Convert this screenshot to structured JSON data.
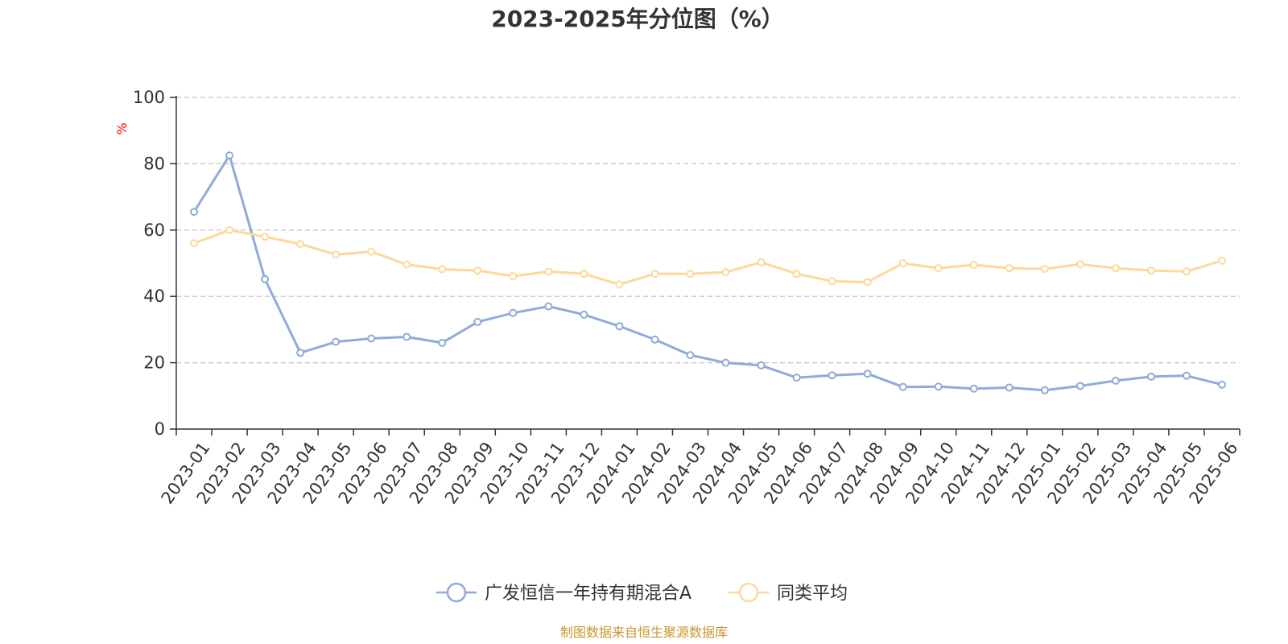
{
  "chart_data": {
    "type": "line",
    "title": "2023-2025年分位图（%）",
    "y_unit": "%",
    "ylim": [
      0,
      100
    ],
    "yticks": [
      0,
      20,
      40,
      60,
      80,
      100
    ],
    "grid": "horizontal-dashed",
    "legend_position": "bottom-center",
    "categories": [
      "2023-01",
      "2023-02",
      "2023-03",
      "2023-04",
      "2023-05",
      "2023-06",
      "2023-07",
      "2023-08",
      "2023-09",
      "2023-10",
      "2023-11",
      "2023-12",
      "2024-01",
      "2024-02",
      "2024-03",
      "2024-04",
      "2024-05",
      "2024-06",
      "2024-07",
      "2024-08",
      "2024-09",
      "2024-10",
      "2024-11",
      "2024-12",
      "2025-01",
      "2025-02",
      "2025-03",
      "2025-04",
      "2025-05",
      "2025-06"
    ],
    "series": [
      {
        "name": "广发恒信一年持有期混合A",
        "color": "#8eabd9",
        "values": [
          65.5,
          82.5,
          45.2,
          23.0,
          26.3,
          27.3,
          27.8,
          26.0,
          32.3,
          35.0,
          37.0,
          34.5,
          31.0,
          27.0,
          22.3,
          20.0,
          19.2,
          15.5,
          16.2,
          16.7,
          12.7,
          12.8,
          12.2,
          12.5,
          11.7,
          13.0,
          14.6,
          15.8,
          16.1,
          13.4
        ]
      },
      {
        "name": "同类平均",
        "color": "#fdd89a",
        "values": [
          56.0,
          60.0,
          58.0,
          55.8,
          52.6,
          53.5,
          49.6,
          48.2,
          47.8,
          46.1,
          47.5,
          46.8,
          43.6,
          46.8,
          46.8,
          47.3,
          50.3,
          46.8,
          44.6,
          44.3,
          50.0,
          48.5,
          49.5,
          48.5,
          48.3,
          49.7,
          48.5,
          47.8,
          47.5,
          50.8
        ]
      }
    ]
  },
  "source_note": "制图数据来自恒生聚源数据库"
}
